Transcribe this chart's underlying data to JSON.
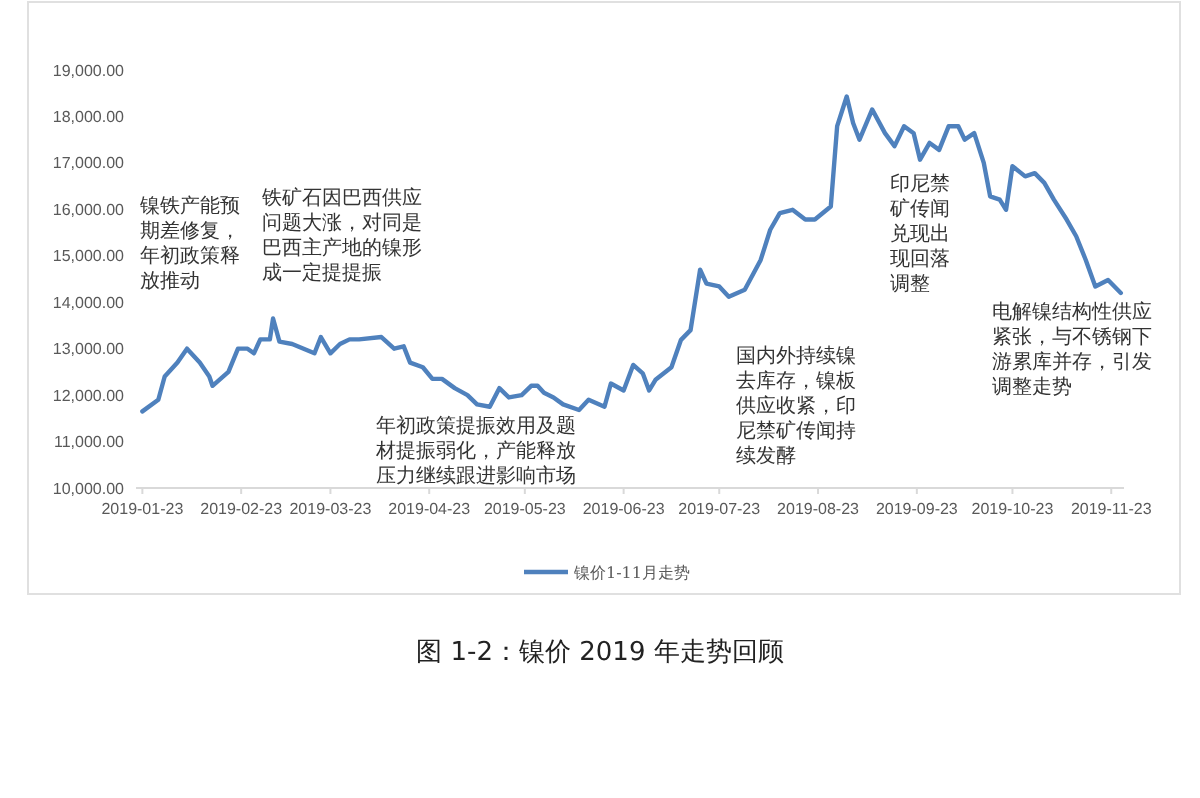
{
  "chart_data": {
    "type": "line",
    "title": "图 1-2：镍价 2019 年走势回顾",
    "legend": "bottom",
    "grid": false,
    "xlim": [
      "2019-01-21",
      "2019-11-27"
    ],
    "xticks": [
      {
        "value": "2019-01-23",
        "label": "2019-01-23"
      },
      {
        "value": "2019-02-23",
        "label": "2019-02-23"
      },
      {
        "value": "2019-03-23",
        "label": "2019-03-23"
      },
      {
        "value": "2019-04-23",
        "label": "2019-04-23"
      },
      {
        "value": "2019-05-23",
        "label": "2019-05-23"
      },
      {
        "value": "2019-06-23",
        "label": "2019-06-23"
      },
      {
        "value": "2019-07-23",
        "label": "2019-07-23"
      },
      {
        "value": "2019-08-23",
        "label": "2019-08-23"
      },
      {
        "value": "2019-09-23",
        "label": "2019-09-23"
      },
      {
        "value": "2019-10-23",
        "label": "2019-10-23"
      },
      {
        "value": "2019-11-23",
        "label": "2019-11-23"
      }
    ],
    "ylim": [
      10000,
      19000
    ],
    "yticks": [
      {
        "value": 10000,
        "label": "10,000.00"
      },
      {
        "value": 11000,
        "label": "11,000.00"
      },
      {
        "value": 12000,
        "label": "12,000.00"
      },
      {
        "value": 13000,
        "label": "13,000.00"
      },
      {
        "value": 14000,
        "label": "14,000.00"
      },
      {
        "value": 15000,
        "label": "15,000.00"
      },
      {
        "value": 16000,
        "label": "16,000.00"
      },
      {
        "value": 17000,
        "label": "17,000.00"
      },
      {
        "value": 18000,
        "label": "18,000.00"
      },
      {
        "value": 19000,
        "label": "19,000.00"
      }
    ],
    "x": [
      "2019-01-23",
      "2019-01-28",
      "2019-01-30",
      "2019-02-03",
      "2019-02-06",
      "2019-02-10",
      "2019-02-13",
      "2019-02-14",
      "2019-02-19",
      "2019-02-22",
      "2019-02-25",
      "2019-02-27",
      "2019-03-01",
      "2019-03-04",
      "2019-03-05",
      "2019-03-07",
      "2019-03-11",
      "2019-03-18",
      "2019-03-20",
      "2019-03-23",
      "2019-03-26",
      "2019-03-29",
      "2019-04-01",
      "2019-04-08",
      "2019-04-12",
      "2019-04-15",
      "2019-04-17",
      "2019-04-21",
      "2019-04-24",
      "2019-04-27",
      "2019-05-01",
      "2019-05-05",
      "2019-05-08",
      "2019-05-12",
      "2019-05-15",
      "2019-05-18",
      "2019-05-22",
      "2019-05-25",
      "2019-05-27",
      "2019-05-29",
      "2019-06-01",
      "2019-06-04",
      "2019-06-09",
      "2019-06-12",
      "2019-06-17",
      "2019-06-19",
      "2019-06-23",
      "2019-06-26",
      "2019-06-29",
      "2019-07-01",
      "2019-07-03",
      "2019-07-08",
      "2019-07-11",
      "2019-07-14",
      "2019-07-17",
      "2019-07-19",
      "2019-07-23",
      "2019-07-26",
      "2019-07-31",
      "2019-08-05",
      "2019-08-08",
      "2019-08-11",
      "2019-08-15",
      "2019-08-19",
      "2019-08-22",
      "2019-08-27",
      "2019-08-29",
      "2019-09-01",
      "2019-09-03",
      "2019-09-05",
      "2019-09-09",
      "2019-09-13",
      "2019-09-16",
      "2019-09-19",
      "2019-09-22",
      "2019-09-24",
      "2019-09-27",
      "2019-09-30",
      "2019-10-03",
      "2019-10-06",
      "2019-10-08",
      "2019-10-11",
      "2019-10-14",
      "2019-10-16",
      "2019-10-19",
      "2019-10-21",
      "2019-10-23",
      "2019-10-27",
      "2019-10-30",
      "2019-11-02",
      "2019-11-05",
      "2019-11-09",
      "2019-11-12",
      "2019-11-15",
      "2019-11-18",
      "2019-11-22",
      "2019-11-26"
    ],
    "series": [
      {
        "name": "镍价1-11月走势",
        "color": "#4f81bd",
        "values": [
          11650,
          11900,
          12400,
          12700,
          13000,
          12700,
          12400,
          12200,
          12500,
          13000,
          13000,
          12900,
          13200,
          13200,
          13650,
          13150,
          13100,
          12900,
          13250,
          12900,
          13100,
          13200,
          13200,
          13250,
          13000,
          13050,
          12700,
          12600,
          12350,
          12350,
          12150,
          12000,
          11800,
          11750,
          12150,
          11950,
          12000,
          12200,
          12200,
          12050,
          11950,
          11800,
          11680,
          11900,
          11750,
          12250,
          12100,
          12650,
          12470,
          12100,
          12330,
          12600,
          13190,
          13400,
          14700,
          14400,
          14340,
          14120,
          14270,
          14910,
          15560,
          15920,
          15990,
          15780,
          15780,
          16060,
          17790,
          18430,
          17860,
          17500,
          18150,
          17640,
          17360,
          17790,
          17640,
          17070,
          17430,
          17280,
          17790,
          17790,
          17500,
          17640,
          17000,
          16280,
          16210,
          15990,
          16930,
          16710,
          16780,
          16570,
          16210,
          15780,
          15420,
          14910,
          14340,
          14480,
          14200
        ]
      }
    ],
    "annotations": [
      "镍铁产能预期差修复，年初政策释放推动",
      "铁矿石因巴西供应问题大涨，对同是巴西主产地的镍形成一定提提振",
      "年初政策提振效用及题材提振弱化，产能释放压力继续跟进影响市场",
      "国内外持续镍去库存，镍板供应收紧，印尼禁矿传闻持续发酵",
      "印尼禁矿传闻兑现出现回落调整",
      "电解镍结构性供应紧张，与不锈钢下游累库并存，引发调整走势"
    ]
  }
}
